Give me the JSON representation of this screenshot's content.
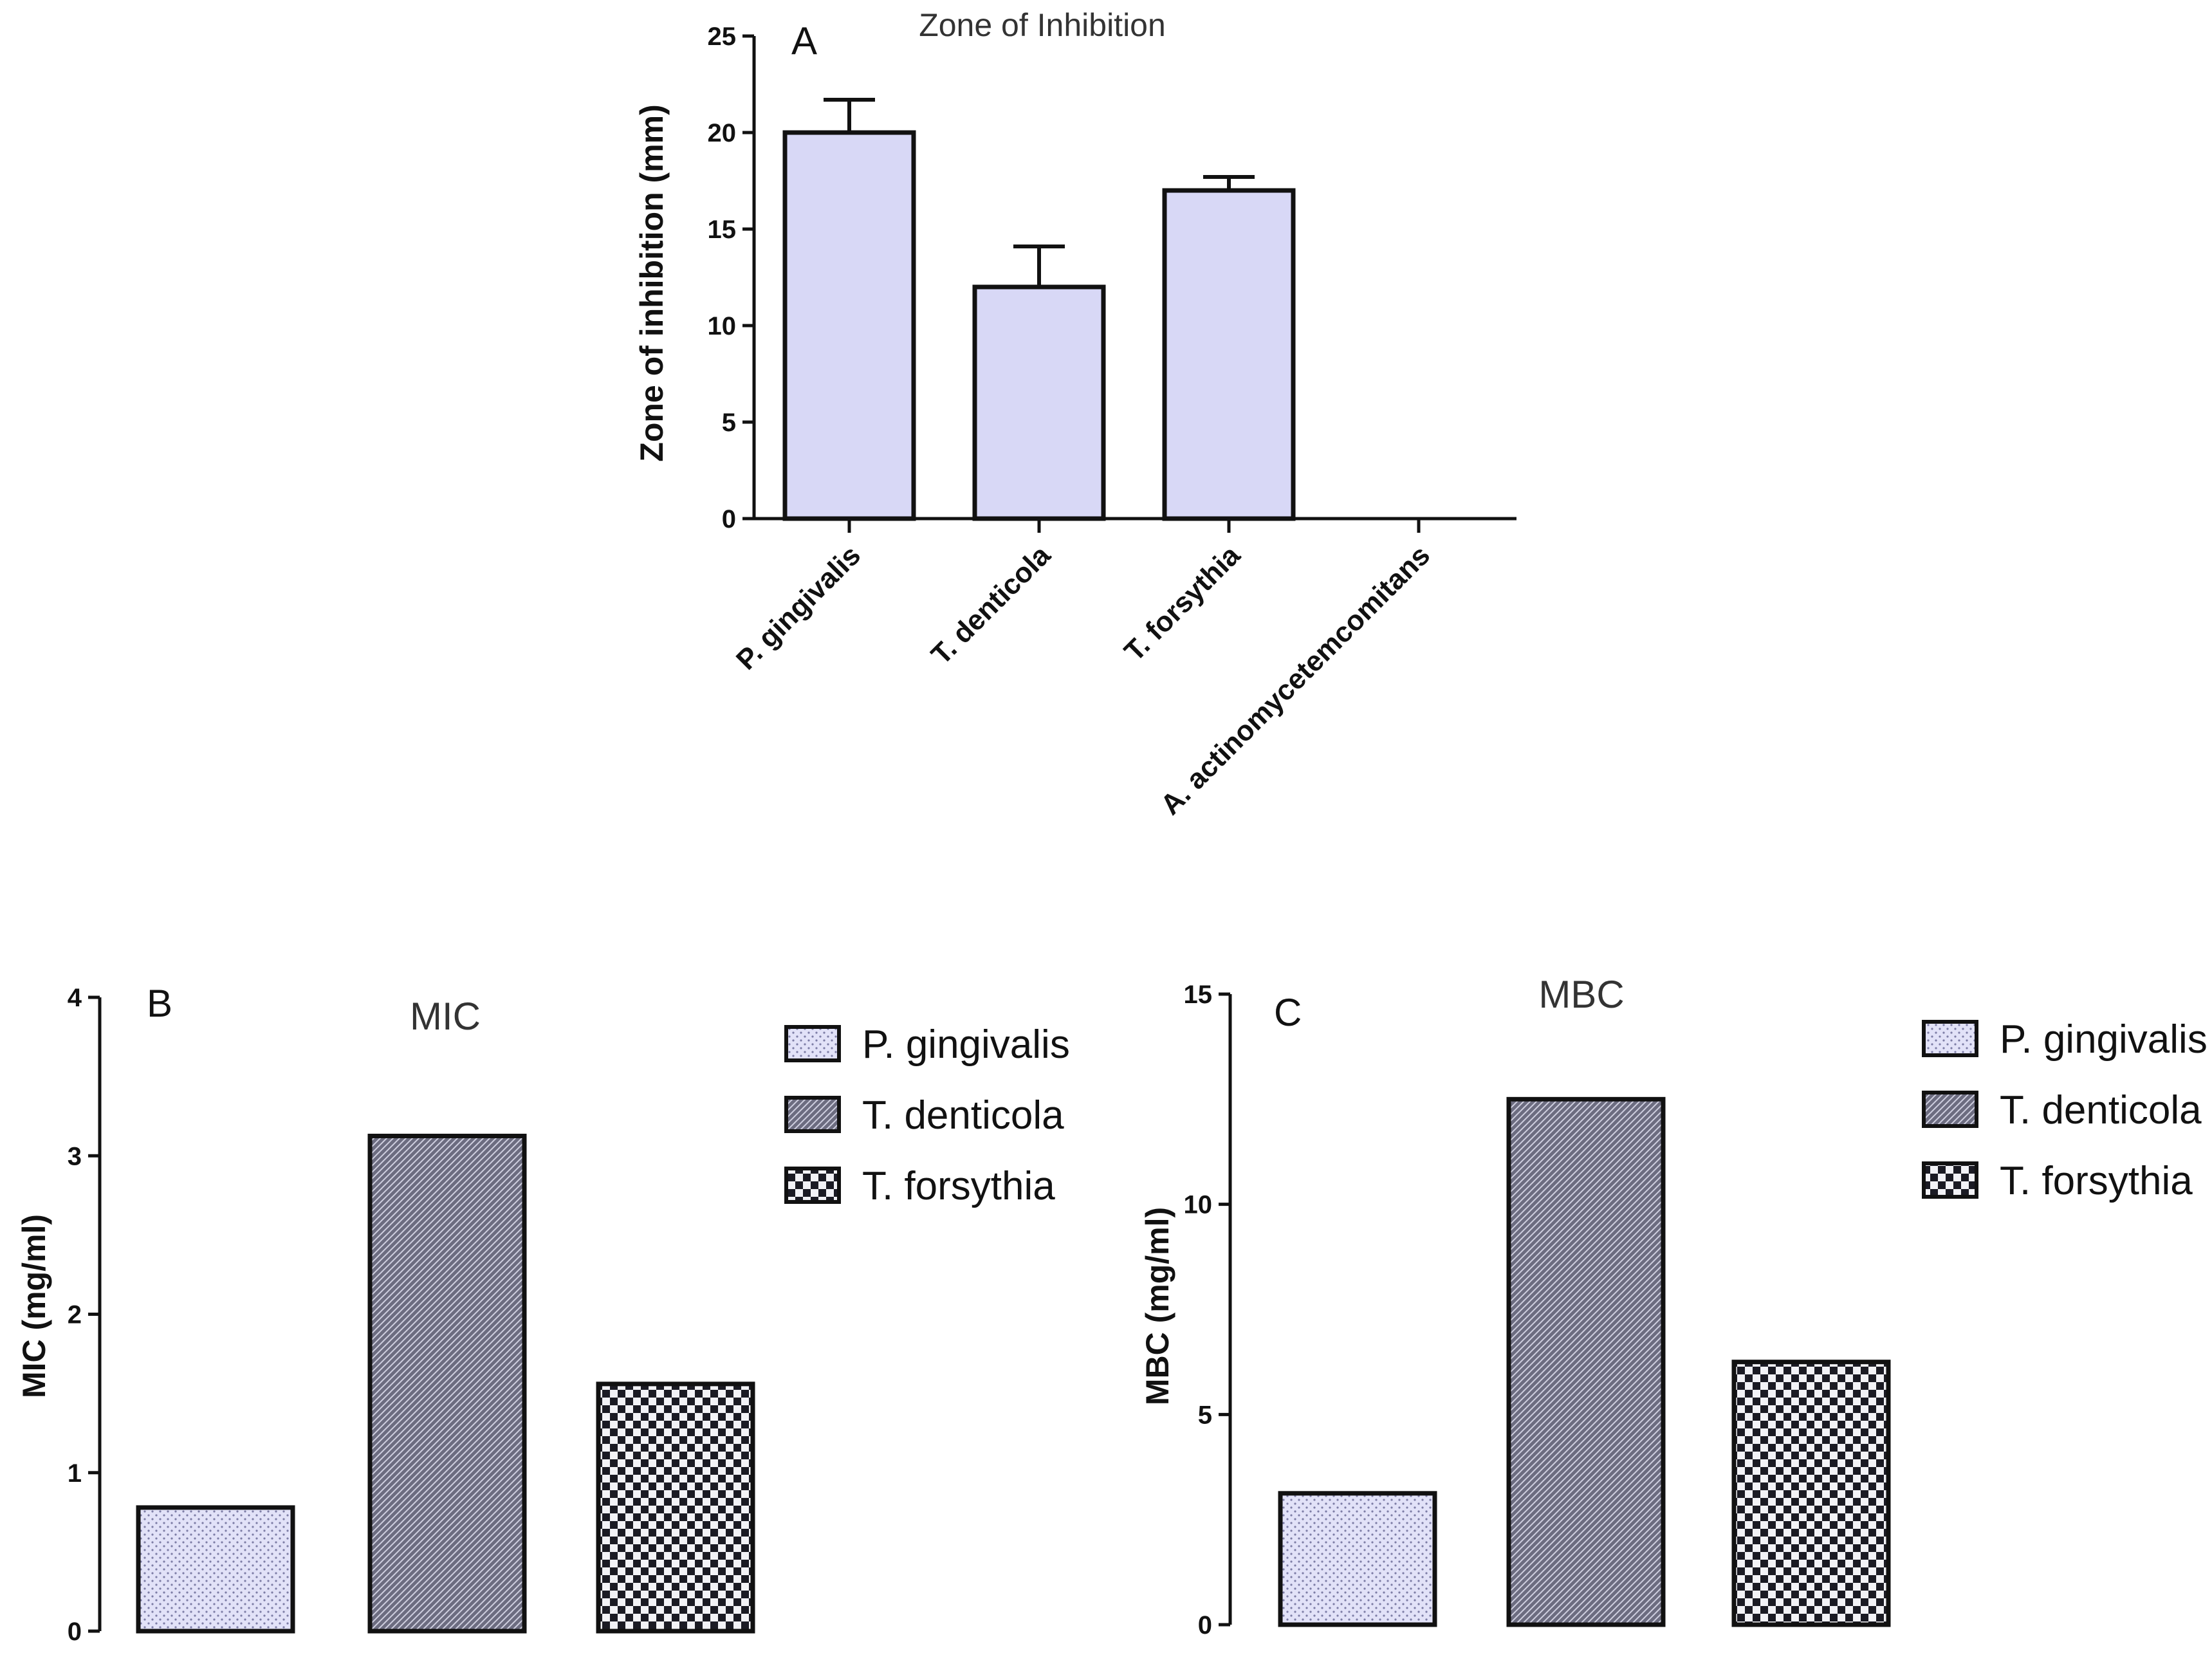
{
  "colors": {
    "bar_fill": "#d8d8f6",
    "axis": "#111111",
    "pattern_dark": "#4a4a5c"
  },
  "panel_a": {
    "letter": "A",
    "title": "Zone of Inhibition",
    "ylabel": "Zone of inhibition (mm)",
    "yticks": [
      "0",
      "5",
      "10",
      "15",
      "20",
      "25"
    ]
  },
  "panel_b": {
    "letter": "B",
    "title": "MIC",
    "ylabel": "MIC (mg/ml)",
    "yticks": [
      "0",
      "1",
      "2",
      "3",
      "4"
    ]
  },
  "panel_c": {
    "letter": "C",
    "title": "MBC",
    "ylabel": "MBC (mg/ml)",
    "yticks": [
      "0",
      "5",
      "10",
      "15"
    ]
  },
  "legend": {
    "items": [
      "P. gingivalis",
      "T. denticola",
      "T. forsythia"
    ]
  },
  "chart_data": [
    {
      "type": "bar",
      "panel": "A",
      "title": "Zone of Inhibition",
      "xlabel": "",
      "ylabel": "Zone of inhibition (mm)",
      "categories": [
        "P. gingivalis",
        "T. denticola",
        "T. forsythia",
        "A. actinomycetemcomitans"
      ],
      "values": [
        20,
        12,
        17,
        0
      ],
      "error": [
        1.7,
        2.1,
        0.7,
        0
      ],
      "ylim": [
        0,
        25
      ],
      "grid": false,
      "legend": "none"
    },
    {
      "type": "bar",
      "panel": "B",
      "title": "MIC",
      "xlabel": "",
      "ylabel": "MIC (mg/ml)",
      "categories": [
        "P. gingivalis",
        "T. denticola",
        "T. forsythia"
      ],
      "values": [
        0.78,
        3.125,
        1.56
      ],
      "ylim": [
        0,
        4
      ],
      "grid": false,
      "legend": "top-right"
    },
    {
      "type": "bar",
      "panel": "C",
      "title": "MBC",
      "xlabel": "",
      "ylabel": "MBC (mg/ml)",
      "categories": [
        "P. gingivalis",
        "T. denticola",
        "T. forsythia"
      ],
      "values": [
        3.125,
        12.5,
        6.25
      ],
      "ylim": [
        0,
        15
      ],
      "grid": false,
      "legend": "top-right"
    }
  ]
}
